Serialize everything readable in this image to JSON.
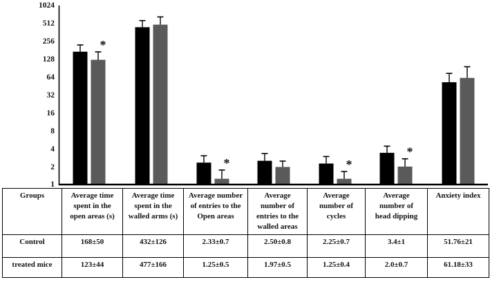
{
  "chart_data": {
    "type": "bar",
    "y_scale": "log2",
    "ylim": [
      1,
      1024
    ],
    "yticks": [
      1024,
      512,
      256,
      128,
      64,
      32,
      16,
      8,
      4,
      2,
      1
    ],
    "grid": false,
    "legend": false,
    "significance_marker": "*",
    "categories": [
      "Average time spent in the open areas (s)",
      "Average time spent in the walled arms (s)",
      "Average number of entries to the Open areas",
      "Average number of entries to the walled areas",
      "Average number of cycles",
      "Average number of head dipping",
      "Anxiety index"
    ],
    "series": [
      {
        "name": "Control",
        "color": "#000000",
        "values": [
          168,
          432,
          2.33,
          2.5,
          2.25,
          3.4,
          51.76
        ],
        "errors": [
          50,
          126,
          0.7,
          0.8,
          0.7,
          1,
          21
        ],
        "significant": [
          false,
          false,
          false,
          false,
          false,
          false,
          false
        ]
      },
      {
        "name": "treated mice",
        "color": "#5a5a5a",
        "values": [
          123,
          477,
          1.25,
          1.97,
          1.25,
          2.0,
          61.18
        ],
        "errors": [
          44,
          166,
          0.5,
          0.5,
          0.4,
          0.7,
          33
        ],
        "significant": [
          true,
          false,
          true,
          false,
          true,
          true,
          false
        ]
      }
    ]
  },
  "table": {
    "header": [
      "Groups",
      "Average time\nspent in the\nopen areas (s)",
      "Average time\nspent in the\nwalled arms (s)",
      "Average number\nof entries to the\nOpen areas",
      "Average\nnumber of\nentries to the\nwalled areas",
      "Average\nnumber of\ncycles",
      "Average\nnumber of\nhead dipping",
      "Anxiety index"
    ],
    "rows": [
      {
        "group": "Control",
        "values": [
          "168±50",
          "432±126",
          "2.33±0.7",
          "2.50±0.8",
          "2.25±0.7",
          "3.4±1",
          "51.76±21"
        ]
      },
      {
        "group": "treated mice",
        "values": [
          "123±44",
          "477±166",
          "1.25±0.5",
          "1.97±0.5",
          "1.25±0.4",
          "2.0±0.7",
          "61.18±33"
        ]
      }
    ]
  }
}
